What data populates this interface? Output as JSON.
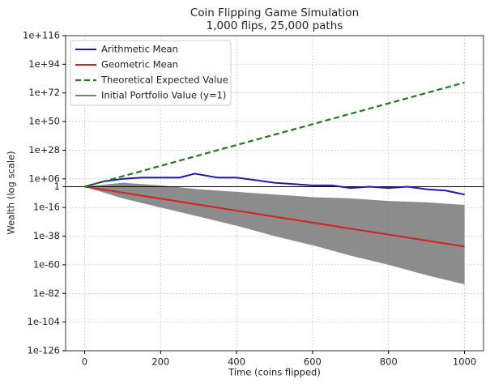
{
  "chart_data": {
    "type": "line",
    "title": "Coin Flipping Game Simulation",
    "subtitle": "1,000 flips, 25,000 paths",
    "x_label": "Time (coins flipped)",
    "y_label": "Wealth (log scale)",
    "log_y": true,
    "grid": true,
    "legend": "upper left",
    "xlim": [
      -50,
      1050
    ],
    "xticks": [
      0,
      200,
      400,
      600,
      800,
      1000
    ],
    "ylim": [
      1e-126,
      1e+116
    ],
    "yticks": [
      {
        "value": 1e-126,
        "label": "1e-126"
      },
      {
        "value": 1e-104,
        "label": "1e-104"
      },
      {
        "value": 1e-82,
        "label": "1e-82"
      },
      {
        "value": 1e-60,
        "label": "1e-60"
      },
      {
        "value": 1e-38,
        "label": "1e-38"
      },
      {
        "value": 1e-16,
        "label": "1e-16"
      },
      1,
      {
        "value": 1000000.0,
        "label": "1e+06"
      },
      {
        "value": 1e+28,
        "label": "1e+28"
      },
      {
        "value": 1e+50,
        "label": "1e+50"
      },
      {
        "value": 1e+72,
        "label": "1e+72"
      },
      {
        "value": 1e+94,
        "label": "1e+94"
      },
      {
        "value": 1e+116,
        "label": "1e+116"
      }
    ],
    "paths_envelope": {
      "color": "#808080",
      "x": [
        0,
        100,
        200,
        300,
        400,
        500,
        600,
        700,
        800,
        900,
        1000
      ],
      "upper": [
        1,
        1000.0,
        10.0,
        0.01,
        0.0001,
        1e-06,
        1e-08,
        1e-09,
        1e-11,
        1e-12,
        1e-14
      ],
      "lower": [
        1,
        1e-09,
        1e-16,
        1e-23,
        1e-30,
        1e-38,
        1e-45,
        1e-53,
        1e-60,
        1e-68,
        1e-75
      ]
    },
    "series": [
      {
        "name": "Arithmetic Mean",
        "color": "#1a1ab4",
        "style": "solid",
        "x": [
          0,
          50,
          100,
          150,
          200,
          250,
          290,
          350,
          400,
          450,
          500,
          550,
          600,
          650,
          700,
          750,
          800,
          850,
          900,
          950,
          1000
        ],
        "values": [
          1,
          10000.0,
          1000000.0,
          10000000.0,
          10000000.0,
          10000000.0,
          10000000000.0,
          10000000.0,
          10000000.0,
          100000.0,
          1000.0,
          100.0,
          10.0,
          10.0,
          0.1,
          1,
          0.1,
          1,
          0.01,
          0.001,
          1e-06
        ]
      },
      {
        "name": "Geometric Mean",
        "color": "#d62020",
        "style": "solid",
        "x": [
          0,
          1000
        ],
        "values": [
          1,
          1e-46
        ]
      },
      {
        "name": "Theoretical Expected Value",
        "color": "#1f7a1f",
        "style": "dashed",
        "x": [
          0,
          1000
        ],
        "values": [
          1,
          1e+80
        ]
      },
      {
        "name": "Initial Portfolio Value (y=1)",
        "color": "#000000",
        "style": "thin",
        "x": [
          -50,
          1050
        ],
        "values": [
          1,
          1
        ]
      }
    ]
  }
}
